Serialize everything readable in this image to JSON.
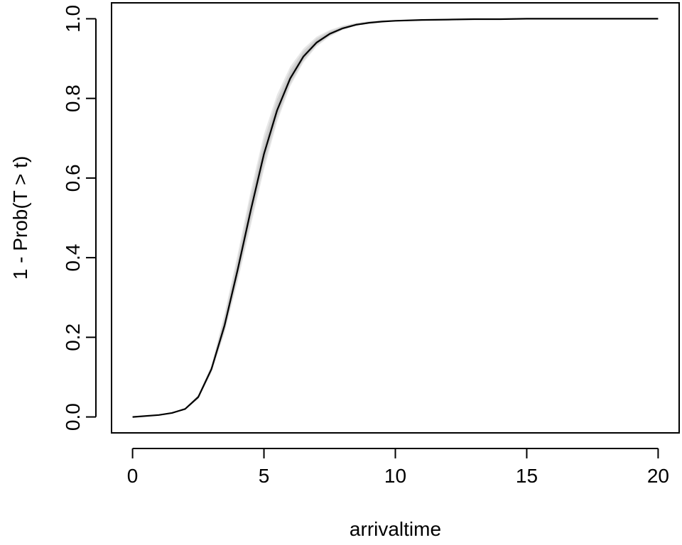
{
  "chart_data": {
    "type": "line",
    "title": "",
    "xlabel": "arrivaltime",
    "ylabel": "1 - Prob(T > t)",
    "xlim": [
      -0.8,
      20.8
    ],
    "ylim": [
      -0.04,
      1.04
    ],
    "x_ticks": [
      0,
      5,
      10,
      15,
      20
    ],
    "y_ticks": [
      0.0,
      0.2,
      0.4,
      0.6,
      0.8,
      1.0
    ],
    "x_tick_labels": [
      "0",
      "5",
      "10",
      "15",
      "20"
    ],
    "y_tick_labels": [
      "0.0",
      "0.2",
      "0.4",
      "0.6",
      "0.8",
      "1.0"
    ],
    "grid": false,
    "series": [
      {
        "role": "main",
        "color": "#000000",
        "x": [
          0,
          1,
          1.5,
          2,
          2.5,
          3,
          3.5,
          4,
          4.5,
          5,
          5.5,
          6,
          6.5,
          7,
          7.5,
          8,
          8.5,
          9,
          9.5,
          10,
          11,
          12,
          13,
          14,
          15,
          16,
          17,
          18,
          19,
          20
        ],
        "y": [
          0.0,
          0.005,
          0.01,
          0.02,
          0.05,
          0.12,
          0.23,
          0.37,
          0.52,
          0.66,
          0.77,
          0.85,
          0.905,
          0.94,
          0.962,
          0.976,
          0.985,
          0.99,
          0.993,
          0.995,
          0.997,
          0.998,
          0.999,
          0.999,
          1.0,
          1.0,
          1.0,
          1.0,
          1.0,
          1.0
        ]
      }
    ],
    "band": {
      "role": "uncertainty",
      "color": "#bdbdbd",
      "x": [
        0,
        1,
        1.5,
        2,
        2.5,
        3,
        3.5,
        4,
        4.5,
        5,
        5.5,
        6,
        6.5,
        7,
        7.5,
        8,
        8.5,
        9,
        9.5,
        10,
        11,
        12,
        13,
        14,
        15,
        16,
        17,
        18,
        19,
        20
      ],
      "lower": [
        0.0,
        0.004,
        0.009,
        0.018,
        0.045,
        0.11,
        0.21,
        0.34,
        0.48,
        0.62,
        0.74,
        0.83,
        0.89,
        0.93,
        0.955,
        0.972,
        0.982,
        0.988,
        0.992,
        0.994,
        0.996,
        0.998,
        0.999,
        0.999,
        1.0,
        1.0,
        1.0,
        1.0,
        1.0,
        1.0
      ],
      "upper": [
        0.0,
        0.006,
        0.011,
        0.022,
        0.056,
        0.13,
        0.26,
        0.41,
        0.57,
        0.71,
        0.81,
        0.88,
        0.925,
        0.955,
        0.972,
        0.983,
        0.99,
        0.994,
        0.996,
        0.997,
        0.998,
        0.999,
        1.0,
        1.0,
        1.0,
        1.0,
        1.0,
        1.0,
        1.0,
        1.0
      ]
    }
  }
}
